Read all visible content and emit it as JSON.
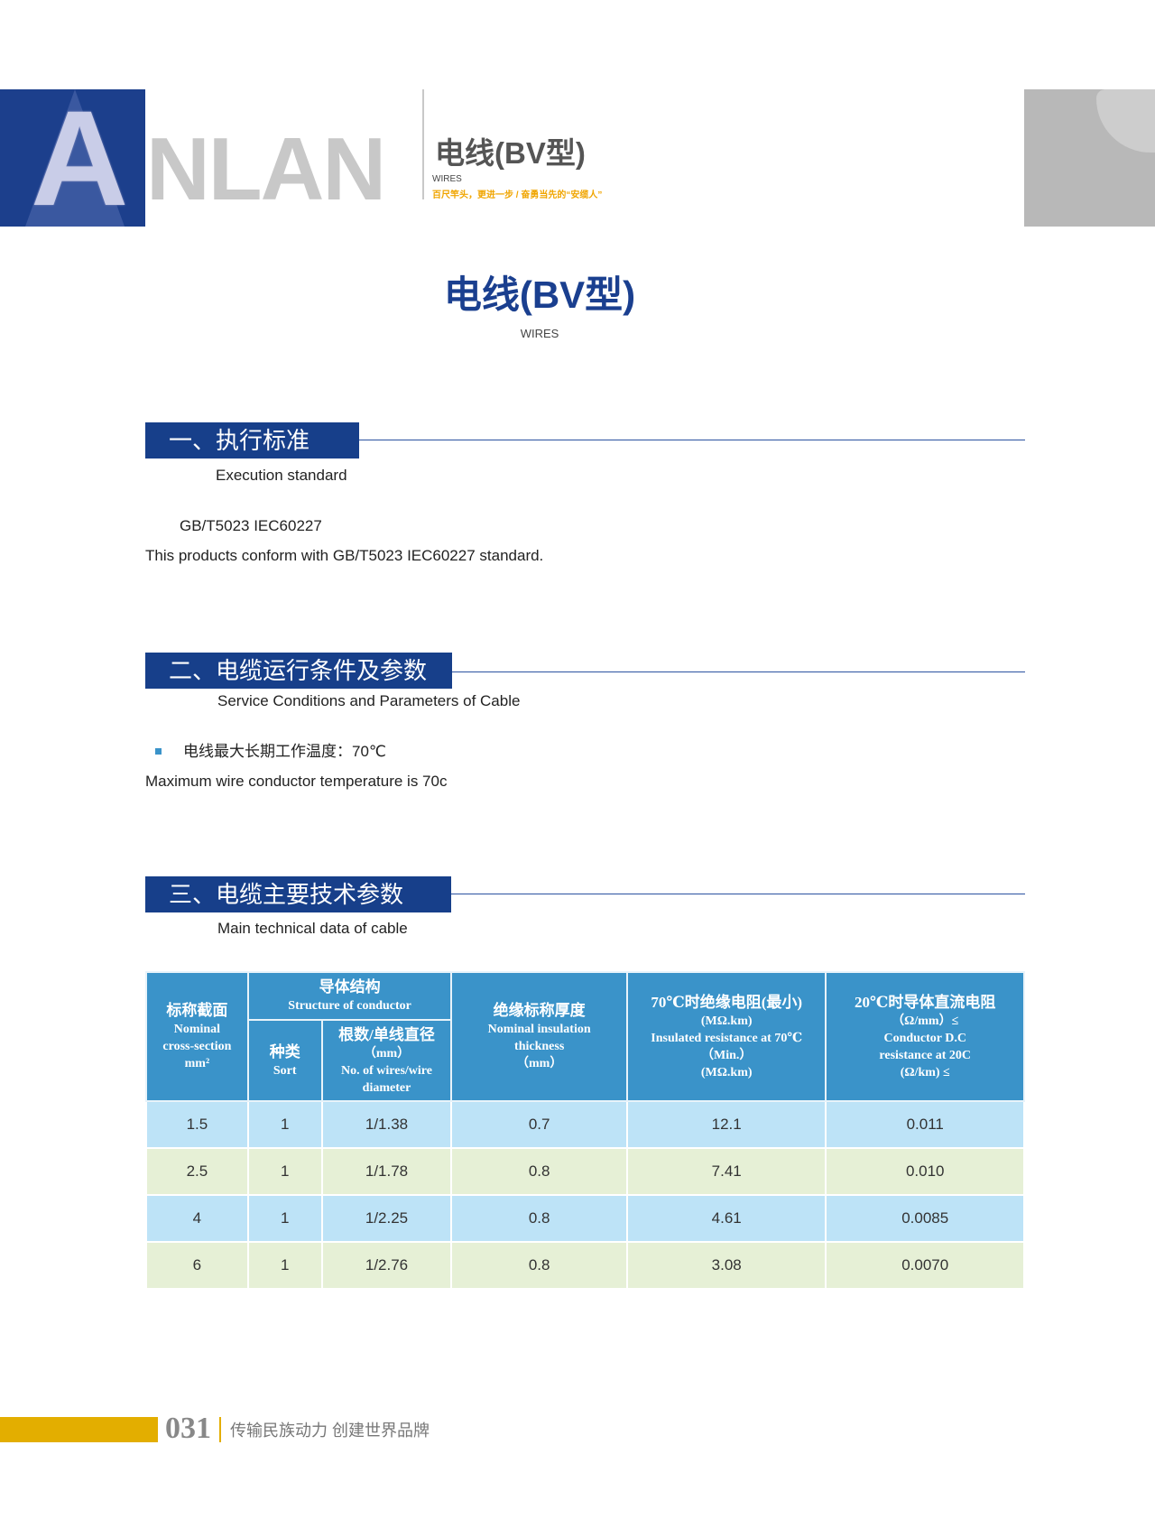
{
  "header": {
    "logo_text": "ANLAN",
    "logo_initial": "A",
    "logo_rest": "NLAN",
    "title": "电线(BV型)",
    "subtitle": "WIRES",
    "slogan": "百尺竿头，更进一步 / 奋勇当先的“安缆人”"
  },
  "main": {
    "title": "电线(BV型)",
    "subtitle": "WIRES"
  },
  "sections": [
    {
      "heading": "一、执行标准",
      "subheading": "Execution standard",
      "lines": [
        "GB/T5023  IEC60227",
        "This products conform with GB/T5023  IEC60227 standard."
      ]
    },
    {
      "heading": "二、电缆运行条件及参数",
      "subheading": "Service Conditions and Parameters of Cable",
      "bullet": "电线最大长期工作温度：70℃",
      "lines": [
        "Maximum wire conductor temperature is 70c"
      ]
    },
    {
      "heading": "三、电缆主要技术参数",
      "subheading": "Main technical data of cable"
    }
  ],
  "table": {
    "headers": {
      "cross_section": {
        "zh": "标称截面",
        "en1": "Nominal",
        "en2": "cross-section",
        "unit": "mm²"
      },
      "structure": {
        "zh": "导体结构",
        "en": "Structure of conductor"
      },
      "sort": {
        "zh": "种类",
        "en": "Sort"
      },
      "wires": {
        "zh": "根数/单线直径",
        "unit": "（mm）",
        "en1": "No. of wires/wire",
        "en2": "diameter"
      },
      "insulation": {
        "zh": "绝缘标称厚度",
        "en1": "Nominal insulation",
        "en2": "thickness",
        "unit": "（mm）"
      },
      "insulated_resistance": {
        "zh": "70℃时绝缘电阻(最小)",
        "unit1": "(MΩ.km)",
        "en": "Insulated resistance at 70℃",
        "min": "（Min.）",
        "unit2": "(MΩ.km)"
      },
      "dc_resistance": {
        "zh": "20℃时导体直流电阻",
        "unit1": "（Ω/mm）≤",
        "en1": "Conductor D.C",
        "en2": "resistance at 20C",
        "unit2": "(Ω/km) ≤"
      }
    },
    "rows": [
      [
        "1.5",
        "1",
        "1/1.38",
        "0.7",
        "12.1",
        "0.011"
      ],
      [
        "2.5",
        "1",
        "1/1.78",
        "0.8",
        "7.41",
        "0.010"
      ],
      [
        "4",
        "1",
        "1/2.25",
        "0.8",
        "4.61",
        "0.0085"
      ],
      [
        "6",
        "1",
        "1/2.76",
        "0.8",
        "3.08",
        "0.0070"
      ]
    ]
  },
  "footer": {
    "page_number": "031",
    "slogan": "传输民族动力  创建世界品牌"
  },
  "colors": {
    "brand_blue": "#173f8a",
    "table_header": "#3a93c9",
    "row_blue": "#bde3f7",
    "row_green": "#e6f0d6",
    "accent_gold": "#e3ae00"
  }
}
